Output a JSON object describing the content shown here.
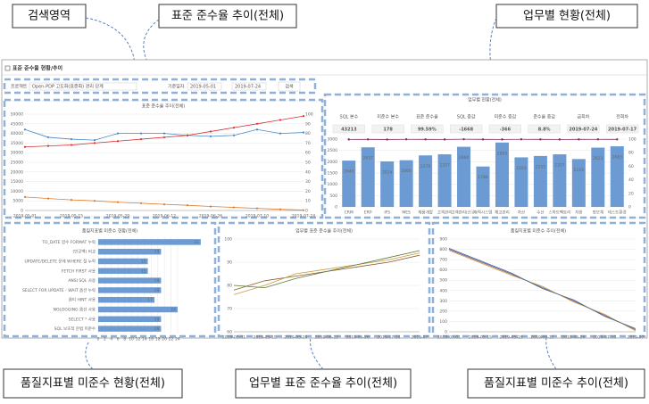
{
  "callouts": {
    "search": "검색영역",
    "trend": "표준 준수율 추이(전체)",
    "work": "업무별 현황(전체)",
    "quality": "품질지표별 미준수 현황(전체)",
    "work_trend": "업무별 표준 준수율 추이(전체)",
    "quality_trend": "품질지표별 미준수 추이(전체)"
  },
  "panel": {
    "title": "표준 준수율 현황/추이"
  },
  "search": {
    "project_label": "프로젝트",
    "project_value": "Open-PDP 고도화(표준화) 관리 단계",
    "date_label": "기준일자",
    "date_from": "2019-05-01",
    "date_to": "2019-07-24",
    "button": "검색"
  },
  "trend_chart": {
    "type": "line",
    "title": "표준 준수율 추이(전체)",
    "categories": [
      "2019-05-01",
      null,
      "2019-05-15",
      null,
      "2019-05-29",
      null,
      "2019-06-12",
      null,
      "2019-06-26",
      null,
      "2019-07-10",
      null,
      "2019-07-24"
    ],
    "ylim": [
      0,
      50000
    ],
    "yticks": [
      0,
      5000,
      10000,
      15000,
      20000,
      25000,
      30000,
      35000,
      40000,
      45000,
      50000
    ],
    "y2lim": [
      0,
      100
    ],
    "y2ticks": [
      0,
      10,
      20,
      30,
      40,
      50,
      60,
      70,
      80,
      90,
      100
    ],
    "series": [
      {
        "color": "#4a86c8",
        "values": [
          42000,
          38000,
          37000,
          36500,
          40000,
          40000,
          40000,
          39000,
          38500,
          39000,
          42000,
          40000,
          40500
        ]
      },
      {
        "color": "#d93030",
        "values": [
          33000,
          33500,
          34000,
          35000,
          36000,
          37000,
          38000,
          39000,
          41000,
          43000,
          45000,
          47000,
          49000
        ]
      },
      {
        "color": "#e07b2a",
        "values": [
          7000,
          6200,
          5500,
          5000,
          4300,
          3800,
          3200,
          2700,
          2100,
          1600,
          1100,
          600,
          200
        ]
      }
    ]
  },
  "work_status": {
    "title": "업무별 현황(전체)",
    "kpis": [
      {
        "label": "SQL 본수",
        "value": "43213"
      },
      {
        "label": "미준수 본수",
        "value": "178"
      },
      {
        "label": "표준 준수율",
        "value": "99.59%"
      },
      {
        "label": "SQL 증감",
        "value": "-1668"
      },
      {
        "label": "미준수 증감",
        "value": "-366"
      },
      {
        "label": "준수율 증감",
        "value": "8.8%"
      },
      {
        "label": "금회차",
        "value": "2019-07-24"
      },
      {
        "label": "전회차",
        "value": "2019-07-17"
      }
    ],
    "chart": {
      "type": "bar",
      "categories": [
        "CRM",
        "ERP",
        "IFS",
        "MES",
        "제품개발",
        "고객관리",
        "고객관리(신규)",
        "이력시스템",
        "재고관리",
        "자산",
        "수산",
        "스마트팩토리",
        "자원",
        "정보계",
        "테스트환경"
      ],
      "ylim": [
        0,
        3000
      ],
      "yticks": [
        0,
        500,
        1000,
        1500,
        2000,
        2500,
        3000
      ],
      "y2lim": [
        0,
        100
      ],
      "y2ticks": [
        0,
        20,
        40,
        60,
        80,
        100
      ],
      "bar_color": "#6c9bd4",
      "values": [
        2049,
        2637,
        2014,
        2066,
        2279,
        2327,
        2660,
        1788,
        2850,
        2193,
        2255,
        2327,
        2119,
        2623,
        2683
      ],
      "rate": {
        "color": "#7a2a5a",
        "values": [
          99.5,
          99.6,
          99.4,
          99.7,
          99.6,
          99.5,
          99.8,
          99.6,
          99.5,
          99.7,
          99.6,
          99.5,
          99.6,
          99.7,
          99.6
        ]
      }
    }
  },
  "quality_chart": {
    "type": "hbar",
    "title": "품질지표별 미준수 현황(전체)",
    "categories": [
      "TO_DATE 함수 FORMAT 누락",
      "(빈공백) 비교",
      "UPDATE/DELETE 문에 WHERE 절 누락",
      "FETCH FIRST 사용",
      "ANSI SQL 사용",
      "SELECT FOR UPDATE - WAIT 옵션 누락",
      "옵티 HINT 사용",
      "NOLOGGING 옵션 사용",
      "SELECT * 사용",
      "SQL 보호적 문법 미준수"
    ],
    "values": [
      31,
      19,
      15,
      15,
      19,
      19,
      17,
      24,
      19,
      19
    ],
    "color": "#6c9bd4",
    "xlim": [
      0,
      34
    ],
    "xticks": [
      0,
      2,
      4,
      6,
      8,
      10,
      12,
      14,
      16,
      18,
      20,
      22,
      24
    ]
  },
  "work_trend_chart": {
    "type": "line",
    "title": "업무별 표준 준수율 추이(전체)",
    "categories": [
      "2019-05-01",
      "2019-05-15",
      "2019-05-29",
      "2019-06-12",
      "2019-06-26",
      "2019-07-10",
      "2019-07"
    ],
    "ylim": [
      60,
      100
    ],
    "yticks": [
      60,
      70,
      80,
      90,
      100
    ],
    "series": [
      {
        "color": "#8b5a2b",
        "values": [
          78,
          82,
          84,
          86,
          88,
          90,
          93
        ]
      },
      {
        "color": "#c89b3c",
        "values": [
          76,
          80,
          85,
          87,
          89,
          91,
          94
        ]
      },
      {
        "color": "#5a7a3a",
        "values": [
          80,
          79,
          83,
          86,
          89,
          92,
          95
        ]
      }
    ]
  },
  "quality_trend_chart": {
    "type": "line",
    "title": "품질지표별 미준수 추이(전체)",
    "categories": [
      "2019-05-01",
      "2019-05-15",
      "2019-05-29",
      "2019-06-12",
      "2019-06-26",
      "2019-07-10",
      "2019-07"
    ],
    "ylim": [
      0,
      900
    ],
    "yticks": [
      0,
      100,
      200,
      300,
      400,
      500,
      600,
      700,
      800,
      900
    ],
    "series": [
      {
        "color": "#7a4a8a",
        "values": [
          800,
          680,
          560,
          430,
          300,
          160,
          20
        ]
      },
      {
        "color": "#c89b3c",
        "values": [
          790,
          670,
          550,
          440,
          290,
          170,
          10
        ]
      },
      {
        "color": "#3a6a9a",
        "values": [
          810,
          690,
          570,
          420,
          310,
          150,
          30
        ]
      }
    ]
  }
}
